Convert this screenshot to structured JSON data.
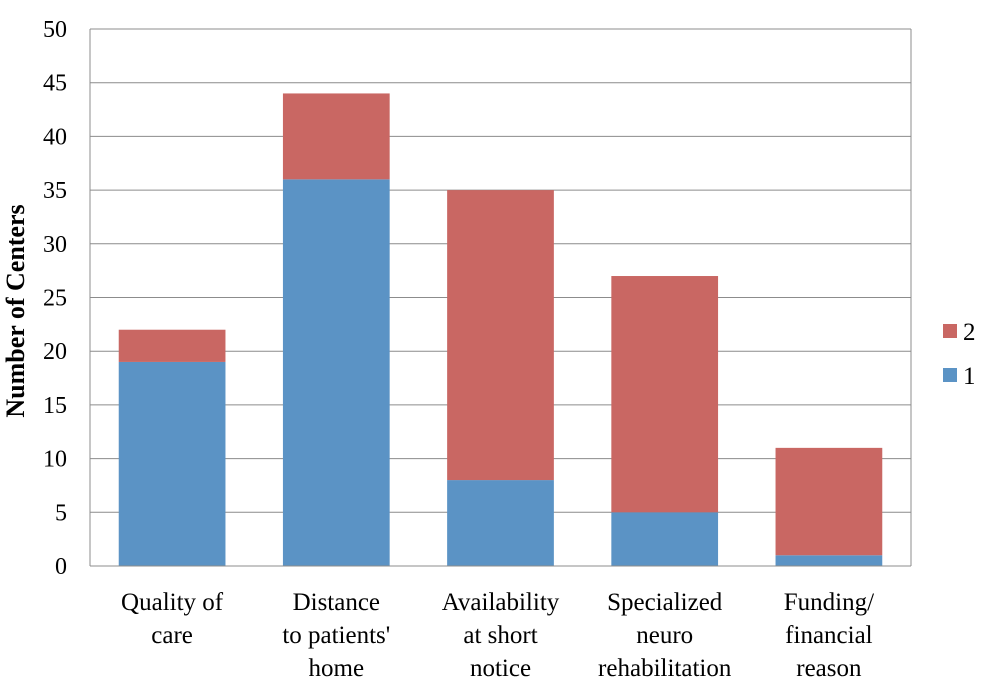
{
  "chart_data": {
    "type": "bar",
    "stacked": true,
    "categories": [
      [
        "Quality of",
        "care"
      ],
      [
        "Distance",
        "to patients'",
        "home"
      ],
      [
        "Availability",
        "at short",
        "notice"
      ],
      [
        "Specialized",
        "neuro",
        "rehabilitation"
      ],
      [
        "Funding/",
        "financial",
        "reason"
      ]
    ],
    "series": [
      {
        "name": "1",
        "color": "#5b93c5",
        "values": [
          19,
          36,
          8,
          5,
          1
        ]
      },
      {
        "name": "2",
        "color": "#c96763",
        "values": [
          3,
          8,
          27,
          22,
          10
        ]
      }
    ],
    "ylabel": "Number of Centers",
    "ylim": [
      0,
      50
    ],
    "yticks": [
      0,
      5,
      10,
      15,
      20,
      25,
      30,
      35,
      40,
      45,
      50
    ],
    "grid": true,
    "legend": "right"
  }
}
